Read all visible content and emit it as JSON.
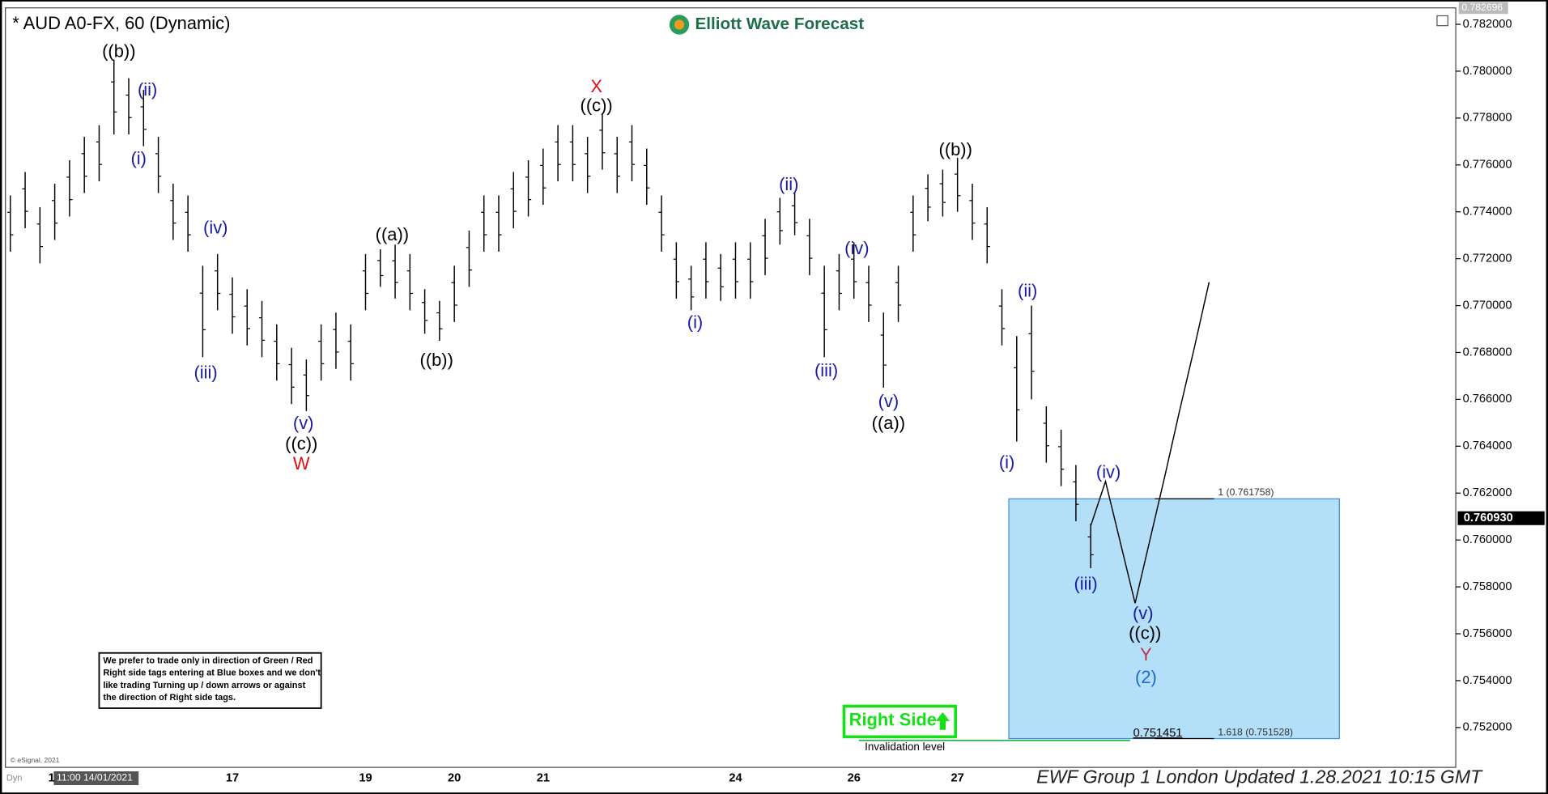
{
  "chart_data": {
    "type": "range-bar",
    "title": "* AUD A0-FX, 60 (Dynamic)",
    "brand": "Elliott Wave Forecast",
    "footer": "EWF Group 1 London Updated 1.28.2021 10:15 GMT",
    "copyright": "© eSignal, 2021",
    "corner_label": "Dyn",
    "cursor_time": "11:00 14/01/2021",
    "bar_color": "#000000",
    "categories": [
      null,
      null,
      null,
      "1",
      null,
      null,
      null,
      null,
      null,
      null,
      null,
      null,
      null,
      null,
      null,
      "17",
      null,
      null,
      null,
      null,
      null,
      null,
      null,
      null,
      "19",
      null,
      null,
      null,
      null,
      null,
      "20",
      null,
      null,
      null,
      null,
      null,
      "21",
      null,
      null,
      null,
      null,
      null,
      null,
      null,
      null,
      null,
      null,
      null,
      null,
      "24",
      null,
      null,
      null,
      null,
      null,
      null,
      null,
      "26",
      null,
      null,
      null,
      null,
      null,
      null,
      "27",
      null,
      null,
      null,
      null,
      null,
      null,
      null,
      null,
      null,
      null,
      null,
      null,
      null,
      null,
      null,
      null,
      null
    ],
    "highs": [
      0.7747,
      0.7757,
      0.7742,
      0.7752,
      0.7762,
      0.7772,
      0.7777,
      0.7805,
      0.7797,
      0.7792,
      0.7772,
      0.7752,
      0.7747,
      0.7717,
      0.7722,
      0.7712,
      0.7707,
      0.7702,
      0.7692,
      0.7682,
      0.7677,
      0.7692,
      0.7697,
      0.7692,
      0.7722,
      0.7724,
      0.7726,
      0.7722,
      0.7707,
      0.7702,
      0.7717,
      0.7732,
      0.7747,
      0.7747,
      0.7757,
      0.7762,
      0.7767,
      0.7777,
      0.7777,
      0.7772,
      0.7782,
      0.7772,
      0.7777,
      0.7767,
      0.7747,
      0.7727,
      0.7717,
      0.7727,
      0.7722,
      0.7727,
      0.7727,
      0.7737,
      0.7746,
      0.7748,
      0.7737,
      0.7717,
      0.7722,
      0.7727,
      0.7717,
      0.7697,
      0.7717,
      0.7747,
      0.7756,
      0.7758,
      0.7763,
      0.7752,
      0.7742,
      0.7707,
      0.7687,
      0.77,
      0.7657,
      0.7647,
      0.7632,
      0.7607,
      null,
      null,
      null,
      null,
      null,
      null,
      null,
      null
    ],
    "lows": [
      0.7723,
      0.7733,
      0.7718,
      0.7728,
      0.7738,
      0.7748,
      0.7753,
      0.7773,
      0.7773,
      0.7768,
      0.7748,
      0.7728,
      0.7723,
      0.7678,
      0.7698,
      0.7688,
      0.7683,
      0.7678,
      0.7668,
      0.7658,
      0.7655,
      0.7668,
      0.7673,
      0.7668,
      0.7698,
      0.7708,
      0.7703,
      0.7698,
      0.7688,
      0.7685,
      0.7693,
      0.7708,
      0.7723,
      0.7723,
      0.7733,
      0.7738,
      0.7743,
      0.7753,
      0.7753,
      0.7748,
      0.7758,
      0.7748,
      0.7753,
      0.7743,
      0.7723,
      0.7703,
      0.7698,
      0.7703,
      0.7702,
      0.7703,
      0.7703,
      0.7713,
      0.7726,
      0.773,
      0.7713,
      0.7678,
      0.7698,
      0.7703,
      0.7693,
      0.7665,
      0.7693,
      0.7723,
      0.7736,
      0.7738,
      0.774,
      0.7728,
      0.7718,
      0.7683,
      0.7642,
      0.766,
      0.7633,
      0.7623,
      0.7608,
      0.7588,
      null,
      null,
      null,
      null,
      null,
      null,
      null,
      null
    ],
    "projection": {
      "color": "#000000",
      "values": [
        null,
        null,
        null,
        null,
        null,
        null,
        null,
        null,
        null,
        null,
        null,
        null,
        null,
        null,
        null,
        null,
        null,
        null,
        null,
        null,
        null,
        null,
        null,
        null,
        null,
        null,
        null,
        null,
        null,
        null,
        null,
        null,
        null,
        null,
        null,
        null,
        null,
        null,
        null,
        null,
        null,
        null,
        null,
        null,
        null,
        null,
        null,
        null,
        null,
        null,
        null,
        null,
        null,
        null,
        null,
        null,
        null,
        null,
        null,
        null,
        null,
        null,
        null,
        null,
        null,
        null,
        null,
        null,
        null,
        null,
        null,
        null,
        null,
        0.7606,
        0.7625,
        0.7599,
        0.7573,
        0.76,
        0.7627,
        0.7655,
        0.7682,
        0.771
      ]
    },
    "ylim": [
      0.7503,
      0.7827
    ],
    "yticks": [
      {
        "value": 0.752,
        "label": "0.752000"
      },
      {
        "value": 0.754,
        "label": "0.754000"
      },
      {
        "value": 0.756,
        "label": "0.756000"
      },
      {
        "value": 0.758,
        "label": "0.758000"
      },
      {
        "value": 0.76,
        "label": "0.760000"
      },
      {
        "value": 0.762,
        "label": "0.762000"
      },
      {
        "value": 0.764,
        "label": "0.764000"
      },
      {
        "value": 0.766,
        "label": "0.766000"
      },
      {
        "value": 0.768,
        "label": "0.768000"
      },
      {
        "value": 0.77,
        "label": "0.770000"
      },
      {
        "value": 0.772,
        "label": "0.772000"
      },
      {
        "value": 0.774,
        "label": "0.774000"
      },
      {
        "value": 0.776,
        "label": "0.776000"
      },
      {
        "value": 0.778,
        "label": "0.778000"
      },
      {
        "value": 0.78,
        "label": "0.780000"
      },
      {
        "value": 0.782,
        "label": "0.782000"
      }
    ],
    "scale_high": {
      "value": 0.782696,
      "label": "0.782696"
    },
    "last_price": {
      "value": 0.76093,
      "label": "0.760930"
    },
    "box_color": "#b3dff9",
    "levels": [
      {
        "value": 0.761758,
        "label": "1 (0.761758)"
      },
      {
        "value": 0.751528,
        "label": "1.618 (0.751528)"
      }
    ],
    "invalidation": {
      "value": 0.751451,
      "label": "0.751451",
      "text": "Invalidation level",
      "color": "#22b04a"
    },
    "right_side": {
      "text": "Right Side",
      "color": "#18e018"
    },
    "disclaimer": [
      "We prefer to trade only in direction of Green / Red",
      "Right side tags entering at Blue boxes and we don't",
      "like trading Turning up / down arrows or against",
      "the direction of Right side tags."
    ],
    "wave_labels": [
      {
        "text": "((b))",
        "color": "#000000"
      },
      {
        "text": "(ii)",
        "color": "#1a1aa6"
      },
      {
        "text": "(i)",
        "color": "#1a1aa6"
      },
      {
        "text": "(iv)",
        "color": "#1a1aa6"
      },
      {
        "text": "(iii)",
        "color": "#1a1aa6"
      },
      {
        "text": "(v)",
        "color": "#1a1aa6"
      },
      {
        "text": "((c))",
        "color": "#000000"
      },
      {
        "text": "W",
        "color": "#e01010"
      },
      {
        "text": "((a))",
        "color": "#000000"
      },
      {
        "text": "((b))",
        "color": "#000000"
      },
      {
        "text": "X",
        "color": "#e01010"
      },
      {
        "text": "((c))",
        "color": "#000000"
      },
      {
        "text": "(ii)",
        "color": "#1a1aa6"
      },
      {
        "text": "(i)",
        "color": "#1a1aa6"
      },
      {
        "text": "(iv)",
        "color": "#1a1aa6"
      },
      {
        "text": "(iii)",
        "color": "#1a1aa6"
      },
      {
        "text": "(v)",
        "color": "#1a1aa6"
      },
      {
        "text": "((a))",
        "color": "#000000"
      },
      {
        "text": "((b))",
        "color": "#000000"
      },
      {
        "text": "(ii)",
        "color": "#1a1aa6"
      },
      {
        "text": "(i)",
        "color": "#1a1aa6"
      },
      {
        "text": "(iv)",
        "color": "#1a1aa6"
      },
      {
        "text": "(iii)",
        "color": "#1a1aa6"
      },
      {
        "text": "(v)",
        "color": "#1a1aa6"
      },
      {
        "text": "((c))",
        "color": "#000000"
      },
      {
        "text": "Y",
        "color": "#c0324a"
      },
      {
        "text": "(2)",
        "color": "#1a6ad0"
      }
    ]
  }
}
